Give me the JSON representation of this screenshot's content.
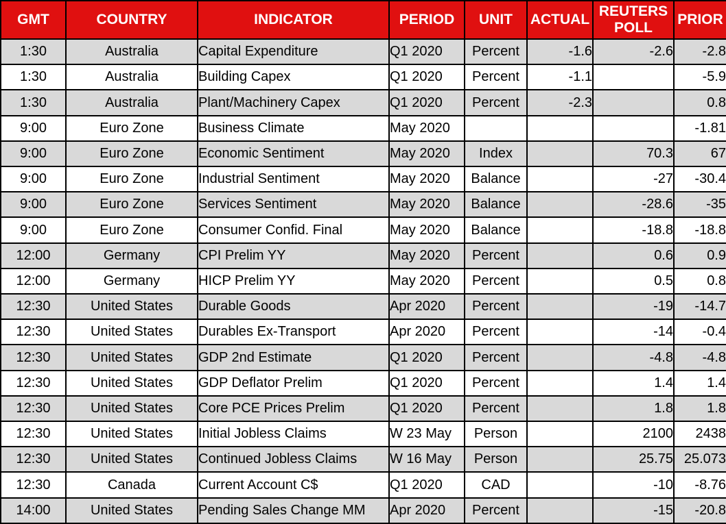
{
  "styles": {
    "header_bg": "#E01010",
    "header_text": "#FFFFFF",
    "row_alt_bg": "#D9D9D9",
    "row_bg": "#FFFFFF",
    "border_color": "#000000",
    "body_text": "#000000"
  },
  "chart_data": {
    "type": "table",
    "columns": [
      "GMT",
      "COUNTRY",
      "INDICATOR",
      "PERIOD",
      "UNIT",
      "ACTUAL",
      "REUTERS POLL",
      "PRIOR"
    ],
    "rows": [
      [
        "1:30",
        "Australia",
        "Capital Expenditure",
        "Q1 2020",
        "Percent",
        "-1.6",
        "-2.6",
        "-2.8"
      ],
      [
        "1:30",
        "Australia",
        "Building Capex",
        "Q1 2020",
        "Percent",
        "-1.1",
        "",
        "-5.9"
      ],
      [
        "1:30",
        "Australia",
        "Plant/Machinery Capex",
        "Q1 2020",
        "Percent",
        "-2.3",
        "",
        "0.8"
      ],
      [
        "9:00",
        "Euro Zone",
        "Business Climate",
        "May 2020",
        "",
        "",
        "",
        "-1.81"
      ],
      [
        "9:00",
        "Euro Zone",
        "Economic Sentiment",
        "May 2020",
        "Index",
        "",
        "70.3",
        "67"
      ],
      [
        "9:00",
        "Euro Zone",
        "Industrial Sentiment",
        "May 2020",
        "Balance",
        "",
        "-27",
        "-30.4"
      ],
      [
        "9:00",
        "Euro Zone",
        "Services Sentiment",
        "May 2020",
        "Balance",
        "",
        "-28.6",
        "-35"
      ],
      [
        "9:00",
        "Euro Zone",
        "Consumer Confid. Final",
        "May 2020",
        "Balance",
        "",
        "-18.8",
        "-18.8"
      ],
      [
        "12:00",
        "Germany",
        "CPI Prelim YY",
        "May 2020",
        "Percent",
        "",
        "0.6",
        "0.9"
      ],
      [
        "12:00",
        "Germany",
        "HICP Prelim YY",
        "May 2020",
        "Percent",
        "",
        "0.5",
        "0.8"
      ],
      [
        "12:30",
        "United States",
        "Durable Goods",
        "Apr 2020",
        "Percent",
        "",
        "-19",
        "-14.7"
      ],
      [
        "12:30",
        "United States",
        "Durables Ex-Transport",
        "Apr 2020",
        "Percent",
        "",
        "-14",
        "-0.4"
      ],
      [
        "12:30",
        "United States",
        "GDP 2nd Estimate",
        "Q1 2020",
        "Percent",
        "",
        "-4.8",
        "-4.8"
      ],
      [
        "12:30",
        "United States",
        "GDP Deflator Prelim",
        "Q1 2020",
        "Percent",
        "",
        "1.4",
        "1.4"
      ],
      [
        "12:30",
        "United States",
        "Core PCE Prices Prelim",
        "Q1 2020",
        "Percent",
        "",
        "1.8",
        "1.8"
      ],
      [
        "12:30",
        "United States",
        "Initial Jobless Claims",
        "W 23 May",
        "Person",
        "",
        "2100",
        "2438"
      ],
      [
        "12:30",
        "United States",
        "Continued Jobless Claims",
        "W 16 May",
        "Person",
        "",
        "25.75",
        "25.073"
      ],
      [
        "12:30",
        "Canada",
        "Current Account C$",
        "Q1 2020",
        "CAD",
        "",
        "-10",
        "-8.76"
      ],
      [
        "14:00",
        "United States",
        "Pending Sales Change MM",
        "Apr 2020",
        "Percent",
        "",
        "-15",
        "-20.8"
      ]
    ]
  }
}
